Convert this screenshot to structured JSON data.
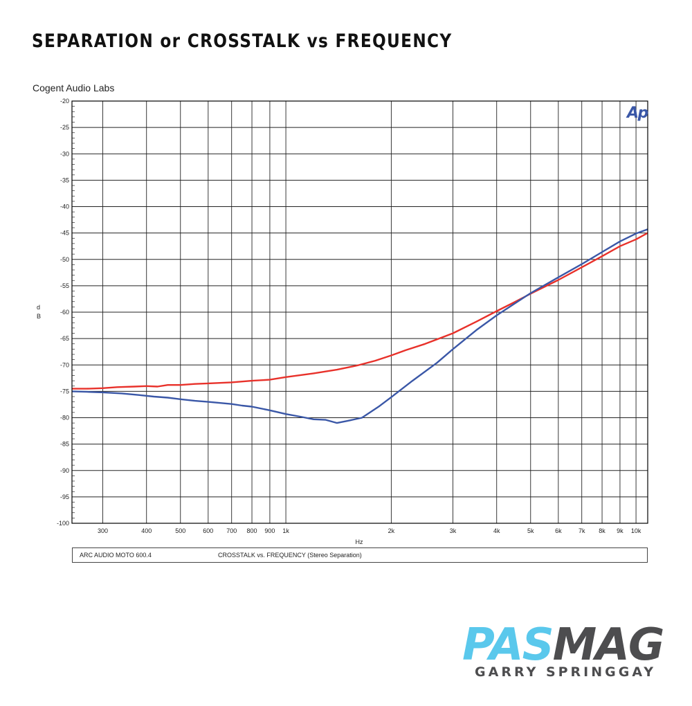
{
  "page": {
    "title": "SEPARATION or CROSSTALK vs FREQUENCY",
    "brand_part1": "PAS",
    "brand_part2": "MAG",
    "author": "GARRY SPRINGGAY",
    "colors": {
      "brand_blue": "#5ac8ec",
      "brand_gray": "#4d4d4f"
    }
  },
  "chart_data": {
    "type": "line",
    "title": "",
    "subtitle": "Cogent Audio Labs",
    "logo": "Ap",
    "xlabel": "Hz",
    "ylabel": "dB",
    "xscale": "log",
    "xlim": [
      245,
      10800
    ],
    "ylim": [
      -100,
      -20
    ],
    "grid": true,
    "x_ticks": [
      {
        "value": 300,
        "label": "300"
      },
      {
        "value": 400,
        "label": "400"
      },
      {
        "value": 500,
        "label": "500"
      },
      {
        "value": 600,
        "label": "600"
      },
      {
        "value": 700,
        "label": "700"
      },
      {
        "value": 800,
        "label": "800"
      },
      {
        "value": 900,
        "label": "900"
      },
      {
        "value": 1000,
        "label": "1k"
      },
      {
        "value": 2000,
        "label": "2k"
      },
      {
        "value": 3000,
        "label": "3k"
      },
      {
        "value": 4000,
        "label": "4k"
      },
      {
        "value": 5000,
        "label": "5k"
      },
      {
        "value": 6000,
        "label": "6k"
      },
      {
        "value": 7000,
        "label": "7k"
      },
      {
        "value": 8000,
        "label": "8k"
      },
      {
        "value": 9000,
        "label": "9k"
      },
      {
        "value": 10000,
        "label": "10k"
      }
    ],
    "y_ticks": [
      -20,
      -25,
      -30,
      -35,
      -40,
      -45,
      -50,
      -55,
      -60,
      -65,
      -70,
      -75,
      -80,
      -85,
      -90,
      -95,
      -100
    ],
    "caption_device": "ARC AUDIO  MOTO 600.4",
    "caption_description": "CROSSTALK vs. FREQUENCY  (Stereo Separation)",
    "series": [
      {
        "color": "#e8312a",
        "points": [
          [
            245,
            -74.5
          ],
          [
            270,
            -74.5
          ],
          [
            300,
            -74.4
          ],
          [
            330,
            -74.2
          ],
          [
            370,
            -74.1
          ],
          [
            400,
            -74.0
          ],
          [
            430,
            -74.1
          ],
          [
            460,
            -73.8
          ],
          [
            500,
            -73.8
          ],
          [
            550,
            -73.6
          ],
          [
            600,
            -73.5
          ],
          [
            700,
            -73.3
          ],
          [
            800,
            -73.0
          ],
          [
            900,
            -72.8
          ],
          [
            1000,
            -72.3
          ],
          [
            1200,
            -71.6
          ],
          [
            1400,
            -70.9
          ],
          [
            1600,
            -70.1
          ],
          [
            1800,
            -69.2
          ],
          [
            2000,
            -68.2
          ],
          [
            2200,
            -67.2
          ],
          [
            2500,
            -66.0
          ],
          [
            3000,
            -64.0
          ],
          [
            3500,
            -61.8
          ],
          [
            4000,
            -59.8
          ],
          [
            4500,
            -58.1
          ],
          [
            5000,
            -56.5
          ],
          [
            6000,
            -53.9
          ],
          [
            7000,
            -51.5
          ],
          [
            8000,
            -49.4
          ],
          [
            9000,
            -47.5
          ],
          [
            10000,
            -46.2
          ],
          [
            10800,
            -45.0
          ]
        ]
      },
      {
        "color": "#3a57a7",
        "points": [
          [
            245,
            -75.0
          ],
          [
            270,
            -75.1
          ],
          [
            300,
            -75.2
          ],
          [
            340,
            -75.4
          ],
          [
            380,
            -75.7
          ],
          [
            420,
            -76.0
          ],
          [
            460,
            -76.2
          ],
          [
            500,
            -76.5
          ],
          [
            550,
            -76.8
          ],
          [
            600,
            -77.0
          ],
          [
            700,
            -77.4
          ],
          [
            750,
            -77.7
          ],
          [
            800,
            -77.9
          ],
          [
            900,
            -78.6
          ],
          [
            1000,
            -79.3
          ],
          [
            1100,
            -79.8
          ],
          [
            1200,
            -80.3
          ],
          [
            1300,
            -80.4
          ],
          [
            1400,
            -81.0
          ],
          [
            1500,
            -80.6
          ],
          [
            1650,
            -80.0
          ],
          [
            1850,
            -77.8
          ],
          [
            2000,
            -76.1
          ],
          [
            2300,
            -73.0
          ],
          [
            2700,
            -69.6
          ],
          [
            3000,
            -67.0
          ],
          [
            3500,
            -63.4
          ],
          [
            4000,
            -60.6
          ],
          [
            5000,
            -56.4
          ],
          [
            6000,
            -53.4
          ],
          [
            7000,
            -50.9
          ],
          [
            8000,
            -48.6
          ],
          [
            9000,
            -46.6
          ],
          [
            10000,
            -45.1
          ],
          [
            10800,
            -44.3
          ]
        ]
      }
    ]
  }
}
